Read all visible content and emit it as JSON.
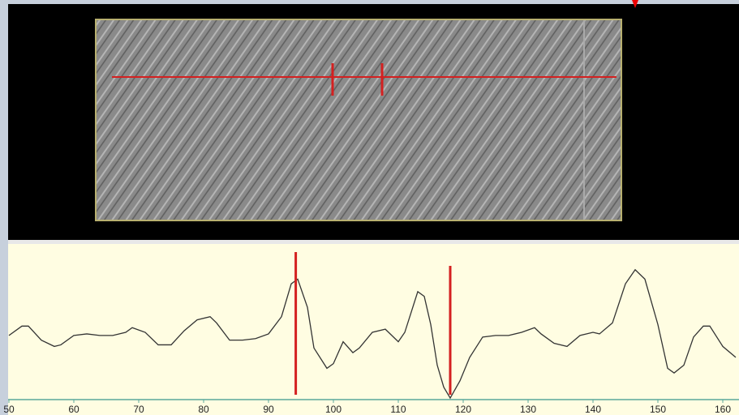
{
  "chart_data": {
    "type": "line",
    "x": [
      50,
      52,
      53,
      55,
      57,
      58,
      60,
      62,
      64,
      66,
      68,
      69,
      71,
      73,
      75,
      77,
      79,
      81,
      82,
      84,
      86,
      88,
      90,
      92,
      93.5,
      94.5,
      96,
      97,
      99,
      100,
      101.5,
      103,
      104,
      106,
      108,
      110,
      111,
      113,
      114,
      115,
      116,
      117,
      118,
      119.5,
      121,
      123,
      125,
      127,
      129,
      131,
      132,
      134,
      136,
      138,
      140,
      141,
      143,
      145,
      146.5,
      148,
      150,
      151.5,
      152.5,
      154,
      155.5,
      157,
      158,
      160,
      162
    ],
    "series": [
      {
        "color": "#333333",
        "values": [
          41,
          47,
          47,
          38,
          34,
          35,
          41,
          42,
          41,
          41,
          43,
          46,
          43,
          35,
          35,
          44,
          51,
          53,
          49,
          38,
          38,
          39,
          42,
          53,
          74,
          77,
          59,
          33,
          20,
          23,
          37,
          30,
          33,
          43,
          45,
          37,
          43,
          69,
          66,
          48,
          22,
          8,
          1,
          12,
          27,
          40,
          41,
          41,
          43,
          46,
          42,
          36,
          34,
          41,
          43,
          42,
          49,
          74,
          83,
          77,
          48,
          20,
          17,
          22,
          40,
          47,
          47,
          34,
          27
        ]
      }
    ],
    "markers": [
      94.2,
      118
    ],
    "marker_color": "#d42020",
    "xlim": [
      50,
      162.5
    ],
    "ylim": [
      0,
      100
    ],
    "xticks": [
      50,
      60,
      70,
      80,
      90,
      100,
      110,
      120,
      130,
      140,
      150,
      160
    ]
  }
}
